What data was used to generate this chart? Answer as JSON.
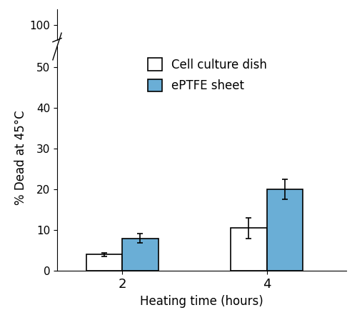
{
  "categories": [
    2,
    4
  ],
  "dish_values": [
    4.0,
    10.5
  ],
  "eptfe_values": [
    8.0,
    20.0
  ],
  "dish_errors": [
    0.5,
    2.5
  ],
  "eptfe_errors": [
    1.2,
    2.5
  ],
  "dish_color": "#ffffff",
  "eptfe_color": "#6aaed6",
  "bar_edge_color": "#000000",
  "ylabel": "% Dead at 45°C",
  "xlabel": "Heating time (hours)",
  "yticks_lower": [
    0,
    10,
    20,
    30,
    40,
    50
  ],
  "yticks_upper": [
    100
  ],
  "ylim_lower": [
    0,
    55
  ],
  "ylim_upper": [
    95,
    105
  ],
  "legend_labels": [
    "Cell culture dish",
    "ePTFE sheet"
  ],
  "bar_width": 0.25,
  "xtick_positions": [
    1,
    2
  ],
  "xtick_labels": [
    "2",
    "4"
  ],
  "lower_height_ratio": 0.88,
  "upper_height_ratio": 0.12
}
